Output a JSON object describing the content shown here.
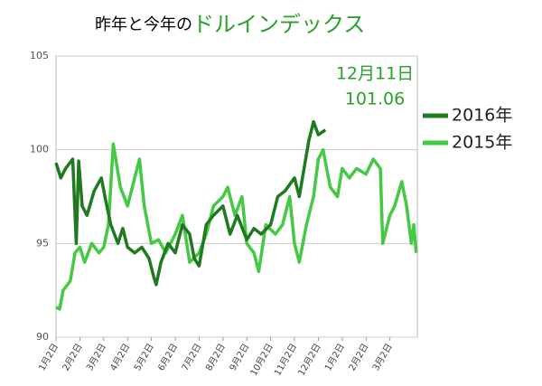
{
  "chart_data": {
    "type": "line",
    "title": "昨年と今年の",
    "title_highlight": "ドルインデックス",
    "annotations": [
      "12月11日",
      "101.06"
    ],
    "xlim": [
      0,
      15.15
    ],
    "xticks": [
      {
        "value": 0,
        "label": "1月2日"
      },
      {
        "value": 1,
        "label": "2月2日"
      },
      {
        "value": 2,
        "label": "3月2日"
      },
      {
        "value": 3,
        "label": "4月2日"
      },
      {
        "value": 4,
        "label": "5月2日"
      },
      {
        "value": 5,
        "label": "6月2日"
      },
      {
        "value": 6,
        "label": "7月2日"
      },
      {
        "value": 7,
        "label": "8月2日"
      },
      {
        "value": 8,
        "label": "9月2日"
      },
      {
        "value": 9,
        "label": "10月2日"
      },
      {
        "value": 10,
        "label": "11月2日"
      },
      {
        "value": 11,
        "label": "12月2日"
      },
      {
        "value": 12,
        "label": "1月2日"
      },
      {
        "value": 13,
        "label": "2月2日"
      },
      {
        "value": 14,
        "label": "3月2日"
      }
    ],
    "ylim": [
      90,
      105
    ],
    "yticks": [
      90,
      95,
      100,
      105
    ],
    "grid": true,
    "legend": "right",
    "series": [
      {
        "name": "2016年",
        "color": "#1f7a1f",
        "x": [
          0,
          0.2,
          0.4,
          0.7,
          0.85,
          0.95,
          1.1,
          1.3,
          1.6,
          1.9,
          2.1,
          2.3,
          2.6,
          2.8,
          3.0,
          3.3,
          3.6,
          3.9,
          4.1,
          4.2,
          4.4,
          4.7,
          5.0,
          5.3,
          5.6,
          5.8,
          6.0,
          6.3,
          6.6,
          7.0,
          7.3,
          7.6,
          8.0,
          8.3,
          8.6,
          9.0,
          9.3,
          9.6,
          10.0,
          10.2,
          10.4,
          10.6,
          10.8,
          11.0,
          11.3
        ],
        "values": [
          99.3,
          98.5,
          99.0,
          99.5,
          95.0,
          99.4,
          97.0,
          96.5,
          97.8,
          98.5,
          97.2,
          96.0,
          95.0,
          95.8,
          94.8,
          94.5,
          94.8,
          94.2,
          93.2,
          92.8,
          94.0,
          95.0,
          94.5,
          96.0,
          95.5,
          94.2,
          93.8,
          96.0,
          96.5,
          97.0,
          95.5,
          96.5,
          95.2,
          95.8,
          95.5,
          96.0,
          97.5,
          97.8,
          98.5,
          97.5,
          99.0,
          100.5,
          101.5,
          100.8,
          101.06
        ]
      },
      {
        "name": "2015年",
        "color": "#44c944",
        "x": [
          0,
          0.15,
          0.3,
          0.6,
          0.8,
          1.0,
          1.2,
          1.5,
          1.8,
          2.0,
          2.2,
          2.4,
          2.7,
          3.0,
          3.3,
          3.5,
          3.7,
          4.0,
          4.3,
          4.6,
          5.0,
          5.3,
          5.6,
          6.0,
          6.3,
          6.6,
          7.0,
          7.2,
          7.5,
          7.8,
          8.0,
          8.3,
          8.5,
          8.8,
          9.2,
          9.5,
          9.8,
          10.0,
          10.2,
          10.5,
          10.8,
          11.0,
          11.2,
          11.5,
          11.8,
          12.0,
          12.3,
          12.6,
          13.0,
          13.3,
          13.6,
          13.7,
          14.0,
          14.2,
          14.5,
          14.7,
          14.9,
          15.0,
          15.1
        ],
        "values": [
          91.6,
          91.5,
          92.5,
          93.0,
          94.5,
          94.8,
          94.0,
          95.0,
          94.5,
          94.8,
          96.0,
          100.3,
          98.0,
          97.0,
          98.5,
          99.5,
          97.0,
          95.0,
          95.2,
          94.5,
          95.5,
          96.5,
          94.0,
          94.5,
          95.5,
          97.0,
          97.5,
          98.0,
          96.5,
          97.5,
          95.0,
          94.5,
          93.5,
          96.0,
          95.5,
          96.0,
          97.5,
          95.0,
          94.0,
          96.0,
          97.5,
          99.5,
          100.0,
          98.0,
          97.5,
          99.0,
          98.5,
          99.0,
          98.7,
          99.5,
          99.0,
          95.0,
          96.5,
          97.0,
          98.3,
          97.0,
          95.0,
          96.0,
          94.5
        ]
      }
    ]
  }
}
